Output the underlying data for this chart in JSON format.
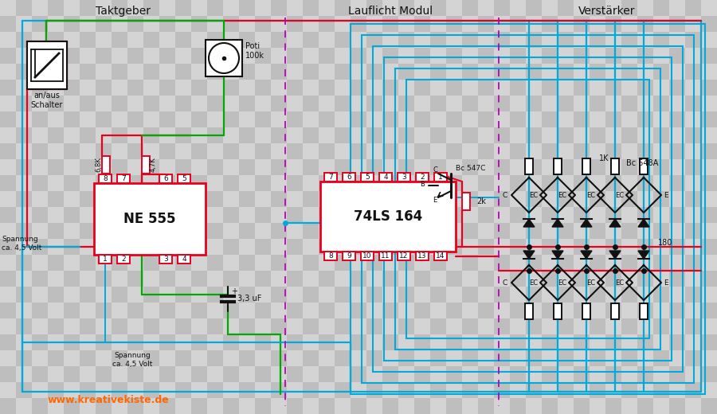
{
  "title_taktgeber": "Taktgeber",
  "title_lauflicht": "Lauflicht Modul",
  "title_verstarker": "Verstärker",
  "label_switch": "an/aus\nSchalter",
  "label_poti": "Poti\n100k",
  "label_r1": "6,8K",
  "label_r2": "4,7K",
  "label_ne555": "NE 555",
  "label_74ls164": "74LS 164",
  "label_bc547c": "Bc 547C",
  "label_bc548a": "Bc 548A",
  "label_r3": "2k",
  "label_r4": "1K",
  "label_r5": "180",
  "label_cap": "3,3 uF",
  "label_spannung1": "Spannung\nca. 4,5 Volt",
  "label_spannung2": "Spannung\nca. 4,5 Volt",
  "label_website": "www.kreativekiste.de",
  "red": "#e8001c",
  "blue": "#00aadd",
  "green": "#00aa00",
  "black": "#111111",
  "purple": "#bb00bb",
  "orange": "#ff6600",
  "white": "#ffffff",
  "checker_light": "#d4d4d4",
  "checker_dark": "#bebebe",
  "fig_w": 9.0,
  "fig_h": 5.2,
  "dpi": 100
}
